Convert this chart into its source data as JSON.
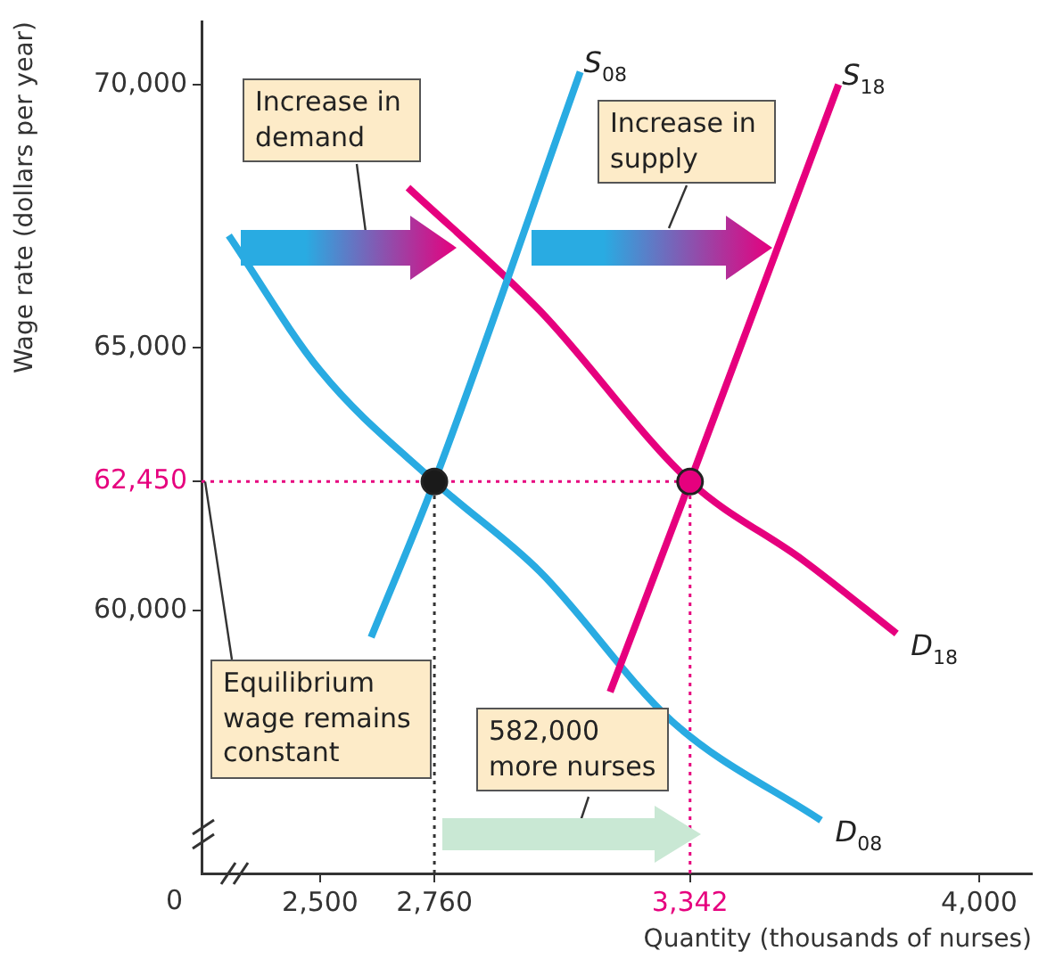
{
  "chart_data": {
    "type": "line",
    "xlabel": "Quantity (thousands of nurses)",
    "ylabel": "Wage rate (dollars per year)",
    "xlim": [
      2230,
      4120
    ],
    "ylim": [
      55000,
      71200
    ],
    "xticks": [
      {
        "value": 2500,
        "label": "2,500"
      },
      {
        "value": 2760,
        "label": "2,760"
      },
      {
        "value": 3342,
        "label": "3,342"
      },
      {
        "value": 4000,
        "label": "4,000"
      }
    ],
    "yticks": [
      {
        "value": 60000,
        "label": "60,000"
      },
      {
        "value": 62450,
        "label": "62,450"
      },
      {
        "value": 65000,
        "label": "65,000"
      },
      {
        "value": 70000,
        "label": "70,000"
      }
    ],
    "grid": false,
    "legend": false,
    "series": [
      {
        "name": "S$_{08}$",
        "marker": "none",
        "color": "#29abe2",
        "x": [
          2616,
          2760,
          3092
        ],
        "values": [
          59490,
          62450,
          70240
        ]
      },
      {
        "name": "S$_{18}$",
        "marker": "none",
        "color": "#e6007e",
        "x": [
          3160,
          3342,
          3680
        ],
        "values": [
          58450,
          62450,
          70000
        ]
      },
      {
        "name": "D$_{08}$",
        "marker": "none",
        "color": "#29abe2",
        "x": [
          2292,
          2500,
          2760,
          3000,
          3300,
          3640
        ],
        "values": [
          67130,
          64560,
          62450,
          60740,
          57900,
          56010
        ]
      },
      {
        "name": "D$_{18}$",
        "marker": "none",
        "color": "#e6007e",
        "x": [
          2700,
          3000,
          3342,
          3600,
          3812
        ],
        "values": [
          68040,
          65700,
          62450,
          60950,
          59560
        ]
      },
      {
        "type": "scatter",
        "marker": "circle",
        "colors": [
          "#1a1a1a",
          "#e6007e"
        ],
        "x": [
          2760,
          3342
        ],
        "values": [
          62450,
          62450
        ]
      }
    ],
    "ref_lines": [
      {
        "axis": "y",
        "value": 62450,
        "color": "#e6007e",
        "line_style": "dotted"
      },
      {
        "axis": "x",
        "value": 2760,
        "color": "#333333",
        "line_style": "dotted"
      },
      {
        "axis": "x",
        "value": 3342,
        "color": "#e6007e",
        "line_style": "dotted"
      }
    ],
    "annotations": [
      "Increase in demand",
      "Increase in supply",
      {
        "text": "Equilibrium wage remains constant",
        "x": 2230,
        "y": 62450
      },
      "582,000 more nurses",
      "0"
    ]
  }
}
